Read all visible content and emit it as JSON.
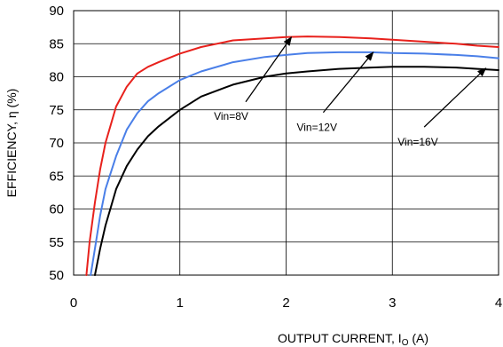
{
  "chart_data": {
    "type": "line",
    "xlabel_main": "OUTPUT CURRENT, I",
    "xlabel_sub": "O",
    "xlabel_unit": " (A)",
    "ylabel": "EFFICIENCY, η  (%)",
    "xlim": [
      0,
      4
    ],
    "ylim": [
      50,
      90
    ],
    "xticks": [
      0,
      1,
      2,
      3,
      4
    ],
    "yticks": [
      50,
      55,
      60,
      65,
      70,
      75,
      80,
      85,
      90
    ],
    "grid": true,
    "series": [
      {
        "name": "Vin=8V",
        "color": "#e8211c",
        "x": [
          0.12,
          0.15,
          0.2,
          0.25,
          0.3,
          0.4,
          0.5,
          0.6,
          0.7,
          0.8,
          1.0,
          1.2,
          1.5,
          1.8,
          2.0,
          2.2,
          2.5,
          2.8,
          3.0,
          3.3,
          3.6,
          3.8,
          4.0
        ],
        "y": [
          50,
          55,
          61,
          66,
          70,
          75.5,
          78.5,
          80.5,
          81.5,
          82.2,
          83.5,
          84.5,
          85.5,
          85.8,
          86,
          86.1,
          86,
          85.8,
          85.6,
          85.3,
          85,
          84.7,
          84.5
        ]
      },
      {
        "name": "Vin=12V",
        "color": "#4a7fe8",
        "x": [
          0.16,
          0.2,
          0.25,
          0.3,
          0.4,
          0.5,
          0.6,
          0.7,
          0.8,
          1.0,
          1.2,
          1.5,
          1.8,
          2.0,
          2.2,
          2.5,
          2.8,
          3.0,
          3.3,
          3.6,
          3.8,
          4.0
        ],
        "y": [
          50,
          54,
          59,
          63,
          68,
          72,
          74.5,
          76.3,
          77.5,
          79.5,
          80.8,
          82.2,
          83,
          83.3,
          83.6,
          83.7,
          83.7,
          83.6,
          83.5,
          83.3,
          83.1,
          82.8
        ]
      },
      {
        "name": "Vin=16V",
        "color": "#000000",
        "x": [
          0.2,
          0.25,
          0.3,
          0.4,
          0.5,
          0.6,
          0.7,
          0.8,
          1.0,
          1.2,
          1.5,
          1.8,
          2.0,
          2.2,
          2.5,
          2.8,
          3.0,
          3.3,
          3.6,
          3.8,
          4.0
        ],
        "y": [
          50,
          54,
          57.5,
          63,
          66.5,
          69,
          71,
          72.5,
          75,
          77,
          78.8,
          80,
          80.5,
          80.8,
          81.2,
          81.4,
          81.5,
          81.5,
          81.4,
          81.2,
          81
        ]
      }
    ],
    "annotations": [
      {
        "text": "Vin=8V",
        "label_x": 1.32,
        "label_y": 73.5,
        "arrow_from": [
          1.62,
          76.2
        ],
        "arrow_to": [
          2.05,
          86
        ]
      },
      {
        "text": "Vin=12V",
        "label_x": 2.1,
        "label_y": 71.8,
        "arrow_from": [
          2.35,
          74.6
        ],
        "arrow_to": [
          2.82,
          83.7
        ]
      },
      {
        "text": "Vin=16V",
        "label_x": 3.05,
        "label_y": 69.6,
        "arrow_from": [
          3.3,
          72.4
        ],
        "arrow_to": [
          3.88,
          81.3
        ]
      }
    ]
  }
}
